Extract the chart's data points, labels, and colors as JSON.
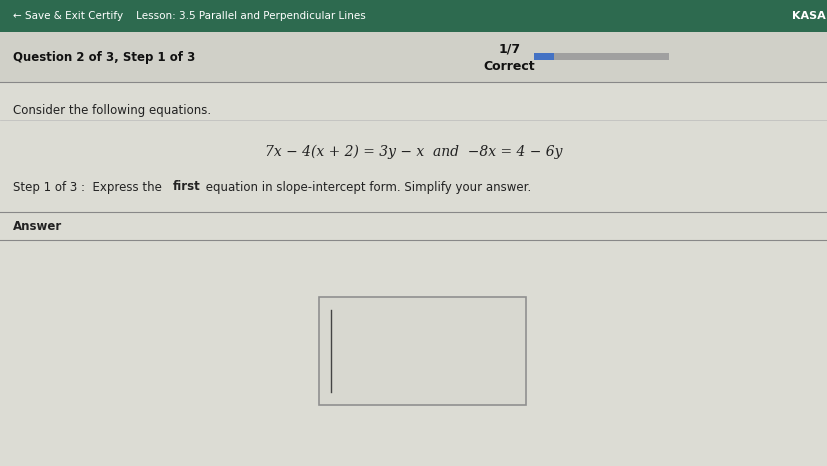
{
  "header_bg_color": "#2d6a4f",
  "header_text_color": "#ffffff",
  "header_left_text": "← Save & Exit Certify    Lesson: 3.5 Parallel and Perpendicular Lines",
  "header_right_text": "KASA",
  "body_bg_color": "#c8c8c0",
  "question_header_bg": "#d0d0c8",
  "question_header_text": "Question 2 of 3, Step 1 of 3",
  "score_text_line1": "1/7",
  "score_text_line2": "Correct",
  "progress_bar_color": "#4472c4",
  "progress_bar_bg": "#a0a0a0",
  "content_bg_color": "#dcdcd4",
  "consider_text": "Consider the following equations.",
  "equation_text": "7x − 4(x + 2) = 3y − x  and  −8x = 4 − 6y",
  "step_text_normal1": "Step 1 of 3 :  Express the ",
  "step_text_bold": "first",
  "step_text_normal2": " equation in slope-intercept form. Simplify your answer.",
  "answer_label": "Answer",
  "answer_box_color": "#909090",
  "answer_box_fill": "#d8d8d0"
}
